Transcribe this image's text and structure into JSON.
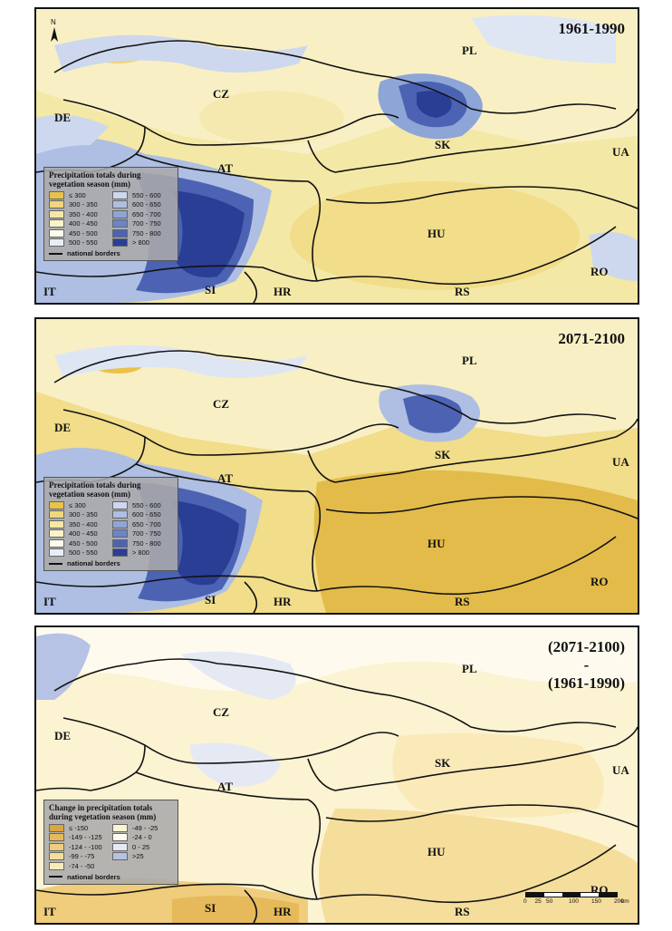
{
  "panels": [
    {
      "id": "baseline",
      "period_lines": [
        "1961-1990"
      ],
      "legend": {
        "title_lines": [
          "Precipitation totals during",
          "vegetation season (mm)"
        ],
        "classes": [
          {
            "label": "≤ 300",
            "color": "#e9c24a"
          },
          {
            "label": "300 - 350",
            "color": "#f0d77a"
          },
          {
            "label": "350 - 400",
            "color": "#f6e7a4"
          },
          {
            "label": "400 - 450",
            "color": "#fbf3c8"
          },
          {
            "label": "450 - 500",
            "color": "#fdfbea"
          },
          {
            "label": "500 - 550",
            "color": "#e8edf6"
          },
          {
            "label": "550 - 600",
            "color": "#cdd8ee"
          },
          {
            "label": "600 - 650",
            "color": "#aebfe3"
          },
          {
            "label": "650 - 700",
            "color": "#8ea5d8"
          },
          {
            "label": "700 - 750",
            "color": "#6c84c8"
          },
          {
            "label": "750 - 800",
            "color": "#4c63b4"
          },
          {
            "label": "> 800",
            "color": "#2a3e96"
          }
        ],
        "border_label": "national borders"
      },
      "countries": [
        "PL",
        "CZ",
        "DE",
        "SK",
        "UA",
        "AT",
        "HU",
        "RO",
        "IT",
        "SI",
        "HR",
        "RS"
      ]
    },
    {
      "id": "future",
      "period_lines": [
        "2071-2100"
      ],
      "legend": {
        "title_lines": [
          "Precipitation totals during",
          "vegetation season (mm)"
        ],
        "classes": [
          {
            "label": "≤ 300",
            "color": "#e9c24a"
          },
          {
            "label": "300 - 350",
            "color": "#f0d77a"
          },
          {
            "label": "350 - 400",
            "color": "#f6e7a4"
          },
          {
            "label": "400 - 450",
            "color": "#fbf3c8"
          },
          {
            "label": "450 - 500",
            "color": "#fdfbea"
          },
          {
            "label": "500 - 550",
            "color": "#e8edf6"
          },
          {
            "label": "550 - 600",
            "color": "#cdd8ee"
          },
          {
            "label": "600 - 650",
            "color": "#aebfe3"
          },
          {
            "label": "650 - 700",
            "color": "#8ea5d8"
          },
          {
            "label": "700 - 750",
            "color": "#6c84c8"
          },
          {
            "label": "750 - 800",
            "color": "#4c63b4"
          },
          {
            "label": "> 800",
            "color": "#2a3e96"
          }
        ],
        "border_label": "national borders"
      },
      "countries": [
        "PL",
        "CZ",
        "DE",
        "SK",
        "UA",
        "AT",
        "HU",
        "RO",
        "IT",
        "SI",
        "HR",
        "RS"
      ]
    },
    {
      "id": "change",
      "period_lines": [
        "(2071-2100)",
        "-",
        "(1961-1990)"
      ],
      "legend": {
        "title_lines": [
          "Change in precipitation totals",
          "during vegetation season (mm)"
        ],
        "classes": [
          {
            "label": "≤ -150",
            "color": "#d9a640"
          },
          {
            "label": "-149 - -125",
            "color": "#e6b95a"
          },
          {
            "label": "-124 - -100",
            "color": "#efcd7c"
          },
          {
            "label": "-99 - -75",
            "color": "#f5dd9b"
          },
          {
            "label": "-74 - -50",
            "color": "#f9eab8"
          },
          {
            "label": "-49 - -25",
            "color": "#fcf3d2"
          },
          {
            "label": "-24 - 0",
            "color": "#fefbee"
          },
          {
            "label": "0 - 25",
            "color": "#e4e9f4"
          },
          {
            "label": ">25",
            "color": "#b7c3e4"
          }
        ],
        "border_label": "national borders"
      },
      "countries": [
        "PL",
        "CZ",
        "DE",
        "SK",
        "UA",
        "AT",
        "HU",
        "RO",
        "IT",
        "SI",
        "HR",
        "RS"
      ]
    }
  ],
  "north_arrow": {
    "label": "N"
  },
  "scale_bar": {
    "ticks": [
      "0",
      "25",
      "50",
      "100",
      "150",
      "200"
    ],
    "unit": "km"
  }
}
